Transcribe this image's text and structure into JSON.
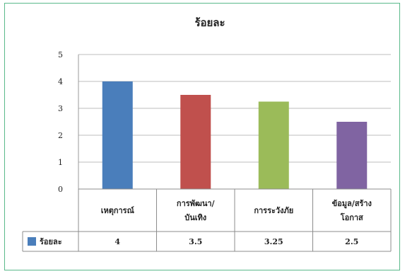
{
  "chart_data": {
    "type": "bar",
    "title": "ร้อยละ",
    "categories": [
      [
        "เหตุการณ์"
      ],
      [
        "การพัฒนา/",
        "บันเทิง"
      ],
      [
        "การระวังภัย"
      ],
      [
        "ข้อมูล/สร้าง",
        "โอกาส"
      ]
    ],
    "series": [
      {
        "name": "ร้อยละ",
        "values": [
          4,
          3.5,
          3.25,
          2.5
        ],
        "value_labels": [
          "4",
          "3.5",
          "3.25",
          "2.5"
        ]
      }
    ],
    "bar_colors": [
      "#4a7ebb",
      "#c0504d",
      "#9bbb59",
      "#8064a2"
    ],
    "legend_color": "#4a7ebb",
    "ylim": [
      0,
      5
    ],
    "yticks": [
      "0",
      "1",
      "2",
      "3",
      "4",
      "5"
    ],
    "grid": true,
    "legend": "data-table-left"
  }
}
